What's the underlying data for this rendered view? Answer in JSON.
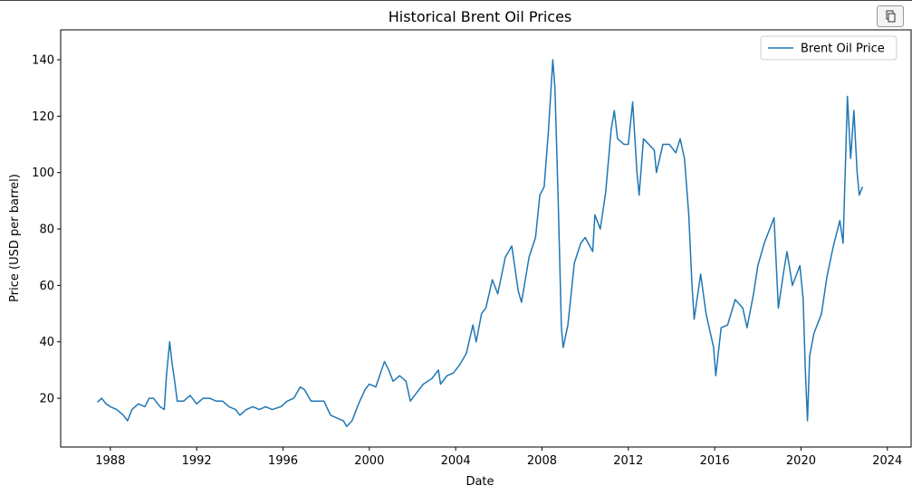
{
  "chart_data": {
    "type": "line",
    "title": "Historical Brent Oil Prices",
    "x_label": "Date",
    "y_label": "Price (USD per barrel)",
    "x": [
      1987.4,
      1987.6,
      1987.8,
      1988.0,
      1988.3,
      1988.6,
      1988.8,
      1989.0,
      1989.3,
      1989.6,
      1989.8,
      1990.0,
      1990.3,
      1990.5,
      1990.6,
      1990.75,
      1990.85,
      1991.0,
      1991.1,
      1991.4,
      1991.7,
      1992.0,
      1992.3,
      1992.6,
      1992.9,
      1993.2,
      1993.5,
      1993.8,
      1994.0,
      1994.3,
      1994.6,
      1994.9,
      1995.2,
      1995.5,
      1995.9,
      1996.2,
      1996.5,
      1996.8,
      1997.0,
      1997.3,
      1997.6,
      1997.9,
      1998.2,
      1998.5,
      1998.8,
      1998.95,
      1999.2,
      1999.5,
      1999.8,
      2000.0,
      2000.3,
      2000.7,
      2000.9,
      2001.1,
      2001.4,
      2001.7,
      2001.9,
      2002.2,
      2002.5,
      2002.9,
      2003.2,
      2003.3,
      2003.6,
      2003.9,
      2004.2,
      2004.5,
      2004.8,
      2004.95,
      2005.2,
      2005.4,
      2005.7,
      2005.95,
      2006.3,
      2006.6,
      2006.9,
      2007.05,
      2007.4,
      2007.7,
      2007.9,
      2008.1,
      2008.3,
      2008.5,
      2008.6,
      2008.75,
      2008.9,
      2008.98,
      2009.2,
      2009.5,
      2009.8,
      2010.0,
      2010.35,
      2010.45,
      2010.7,
      2010.95,
      2011.2,
      2011.35,
      2011.5,
      2011.8,
      2012.0,
      2012.2,
      2012.4,
      2012.5,
      2012.7,
      2012.95,
      2013.2,
      2013.3,
      2013.6,
      2013.9,
      2014.2,
      2014.4,
      2014.6,
      2014.8,
      2014.95,
      2015.05,
      2015.35,
      2015.6,
      2015.95,
      2016.05,
      2016.3,
      2016.6,
      2016.95,
      2017.3,
      2017.5,
      2017.8,
      2018.0,
      2018.3,
      2018.75,
      2018.95,
      2019.2,
      2019.35,
      2019.6,
      2019.95,
      2020.1,
      2020.2,
      2020.3,
      2020.4,
      2020.6,
      2020.95,
      2021.2,
      2021.5,
      2021.8,
      2021.95,
      2022.15,
      2022.3,
      2022.45,
      2022.6,
      2022.7,
      2022.85
    ],
    "series": [
      {
        "name": "Brent Oil Price",
        "color": "#1f77b4",
        "values": [
          18.6,
          20,
          18,
          17,
          16,
          14,
          12,
          16,
          18,
          17,
          20,
          20,
          17,
          16,
          28,
          40,
          33,
          25,
          19,
          19,
          21,
          18,
          20,
          20,
          19,
          19,
          17,
          16,
          14,
          16,
          17,
          16,
          17,
          16,
          17,
          19,
          20,
          24,
          23,
          19,
          19,
          19,
          14,
          13,
          12,
          10,
          12,
          18,
          23,
          25,
          24,
          33,
          30,
          26,
          28,
          26,
          19,
          22,
          25,
          27,
          30,
          25,
          28,
          29,
          32,
          36,
          46,
          40,
          50,
          52,
          62,
          57,
          70,
          74,
          58,
          54,
          70,
          77,
          92,
          95,
          115,
          140,
          130,
          90,
          45,
          38,
          46,
          68,
          75,
          77,
          72,
          85,
          80,
          93,
          115,
          122,
          112,
          110,
          110,
          125,
          100,
          92,
          112,
          110,
          108,
          100,
          110,
          110,
          107,
          112,
          105,
          85,
          60,
          48,
          64,
          50,
          38,
          28,
          45,
          46,
          55,
          52,
          45,
          57,
          67,
          75,
          84,
          52,
          65,
          72,
          60,
          67,
          55,
          30,
          12,
          35,
          43,
          50,
          63,
          74,
          83,
          75,
          127,
          105,
          122,
          100,
          92,
          95
        ]
      }
    ],
    "xlim": [
      1985.7,
      2025.1
    ],
    "ylim": [
      2.7,
      150.6
    ],
    "xticks": [
      1988,
      1992,
      1996,
      2000,
      2004,
      2008,
      2012,
      2016,
      2020,
      2024
    ],
    "yticks": [
      20,
      40,
      60,
      80,
      100,
      120,
      140
    ],
    "legend": "upper right"
  }
}
